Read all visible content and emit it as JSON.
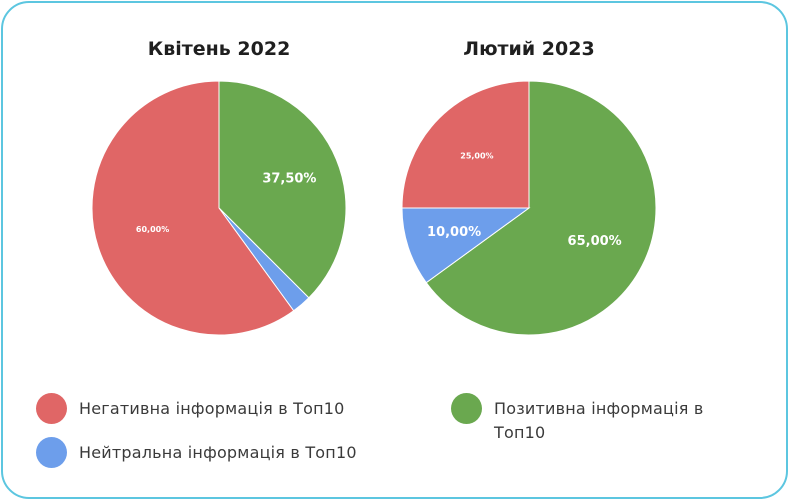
{
  "chart_data": [
    {
      "type": "pie",
      "title": "Квітень 2022",
      "slices": [
        {
          "label": "Позитивна інформація в Топ10",
          "value": 37.5,
          "display": "37,50%",
          "color": "#6aa84f"
        },
        {
          "label": "Нейтральна інформація в Топ10",
          "value": 2.5,
          "display": "",
          "color": "#6d9eeb"
        },
        {
          "label": "Негативна інформація в Топ10",
          "value": 60.0,
          "display": "60,00%",
          "color": "#e06666"
        }
      ]
    },
    {
      "type": "pie",
      "title": "Лютий 2023",
      "slices": [
        {
          "label": "Позитивна інформація в Топ10",
          "value": 65.0,
          "display": "65,00%",
          "color": "#6aa84f"
        },
        {
          "label": "Нейтральна інформація в Топ10",
          "value": 10.0,
          "display": "10,00%",
          "color": "#6d9eeb"
        },
        {
          "label": "Негативна інформація в Топ10",
          "value": 25.0,
          "display": "25,00%",
          "color": "#e06666"
        }
      ]
    }
  ],
  "legend": [
    {
      "label": "Негативна інформація в Топ10",
      "color": "#e06666"
    },
    {
      "label": "Нейтральна інформація в Топ10",
      "color": "#6d9eeb"
    },
    {
      "label": "Позитивна інформація в Топ10",
      "color": "#6aa84f"
    }
  ]
}
